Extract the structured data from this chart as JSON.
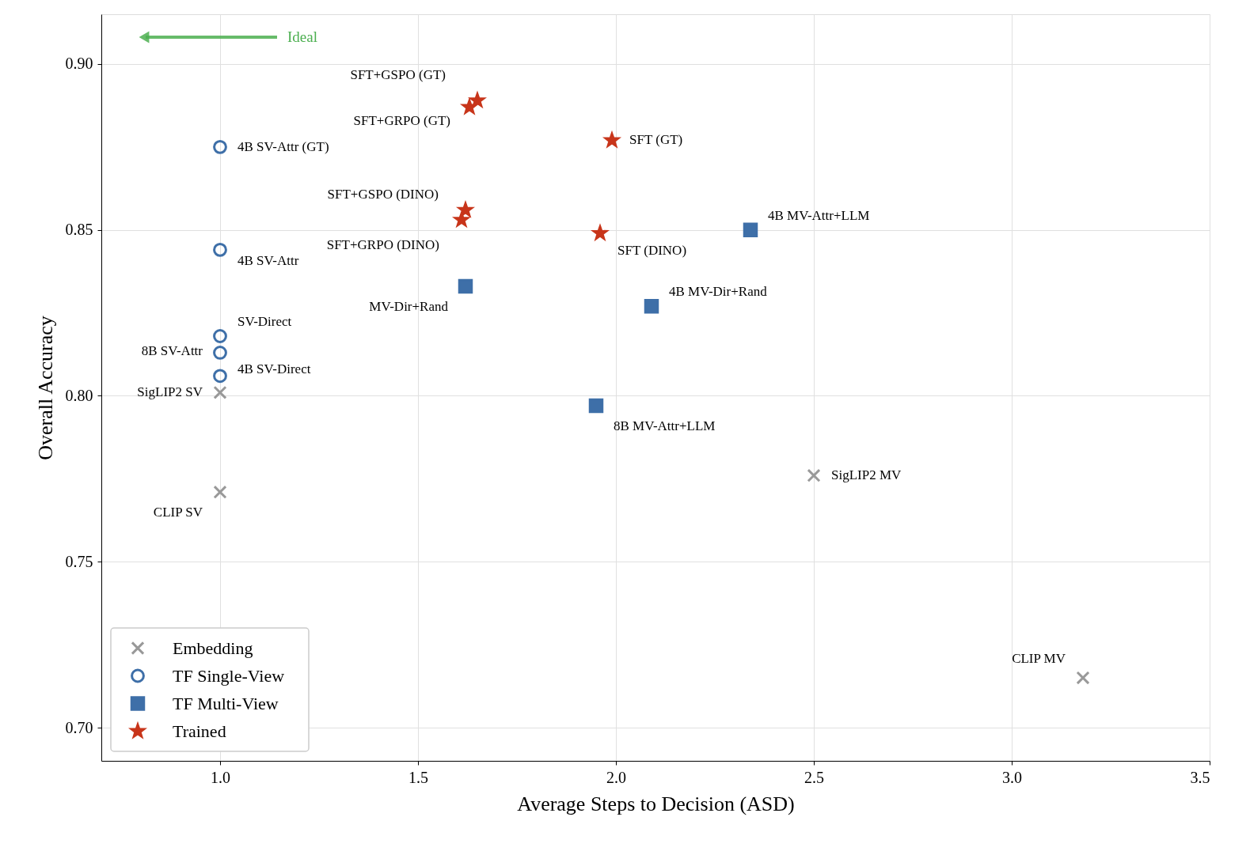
{
  "chart_data": {
    "type": "scatter",
    "xlabel": "Average Steps to Decision (ASD)",
    "ylabel": "Overall Accuracy",
    "xlim": [
      0.7,
      3.5
    ],
    "xticks": [
      {
        "value": 1,
        "label": "1.0"
      },
      1.5,
      {
        "value": 2,
        "label": "2.0"
      },
      2.5,
      {
        "value": 3,
        "label": "3.0"
      },
      3.5
    ],
    "ylim": [
      0.69,
      0.915
    ],
    "yticks": [
      {
        "value": 0.7,
        "label": "0.70"
      },
      0.75,
      {
        "value": 0.8,
        "label": "0.80"
      },
      0.85,
      {
        "value": 0.9,
        "label": "0.90"
      }
    ],
    "grid": true,
    "legend": "bottom left",
    "series": [
      {
        "name": "Embedding",
        "color": "#999999",
        "marker": "cross",
        "x": [
          1.0,
          1.0,
          2.5,
          3.18
        ],
        "values": [
          0.801,
          0.771,
          0.776,
          0.715
        ]
      },
      {
        "name": "TF Single-View",
        "color": "#3e6fa8",
        "marker": "circle",
        "x": [
          1.0,
          1.0,
          1.0,
          1.0,
          1.0
        ],
        "values": [
          0.875,
          0.844,
          0.818,
          0.813,
          0.806
        ]
      },
      {
        "name": "TF Multi-View",
        "color": "#3e6fa8",
        "marker": "square",
        "x": [
          1.62,
          2.09,
          2.34,
          1.95
        ],
        "values": [
          0.833,
          0.827,
          0.85,
          0.797
        ]
      },
      {
        "name": "Trained",
        "color": "#c8351a",
        "marker": "star",
        "x": [
          1.65,
          1.63,
          1.99,
          1.62,
          1.61,
          1.96
        ],
        "values": [
          0.889,
          0.887,
          0.877,
          0.856,
          0.853,
          0.849
        ]
      }
    ],
    "annotations": [
      "Ideal",
      {
        "text": "SigLIP2 SV",
        "x": 1.0,
        "y": 0.801
      },
      {
        "text": "CLIP SV",
        "x": 1.0,
        "y": 0.771
      },
      {
        "text": "SigLIP2 MV",
        "x": 2.5,
        "y": 0.776
      },
      {
        "text": "CLIP MV",
        "x": 3.18,
        "y": 0.715
      },
      {
        "text": "4B SV-Attr (GT)",
        "x": 1.0,
        "y": 0.875
      },
      {
        "text": "4B SV-Attr",
        "x": 1.0,
        "y": 0.844
      },
      {
        "text": "SV-Direct",
        "x": 1.0,
        "y": 0.818
      },
      {
        "text": "8B SV-Attr",
        "x": 1.0,
        "y": 0.813
      },
      {
        "text": "4B SV-Direct",
        "x": 1.0,
        "y": 0.806
      },
      {
        "text": "MV-Dir+Rand",
        "x": 1.62,
        "y": 0.833
      },
      {
        "text": "4B MV-Dir+Rand",
        "x": 2.09,
        "y": 0.827
      },
      {
        "text": "4B MV-Attr+LLM",
        "x": 2.34,
        "y": 0.85
      },
      {
        "text": "8B MV-Attr+LLM",
        "x": 1.95,
        "y": 0.797
      },
      {
        "text": "SFT+GSPO (GT)",
        "x": 1.65,
        "y": 0.889
      },
      {
        "text": "SFT+GRPO (GT)",
        "x": 1.63,
        "y": 0.887
      },
      {
        "text": "SFT (GT)",
        "x": 1.99,
        "y": 0.877
      },
      {
        "text": "SFT+GSPO (DINO)",
        "x": 1.62,
        "y": 0.856
      },
      {
        "text": "SFT+GRPO (DINO)",
        "x": 1.61,
        "y": 0.853
      },
      {
        "text": "SFT (DINO)",
        "x": 1.96,
        "y": 0.849
      }
    ]
  }
}
